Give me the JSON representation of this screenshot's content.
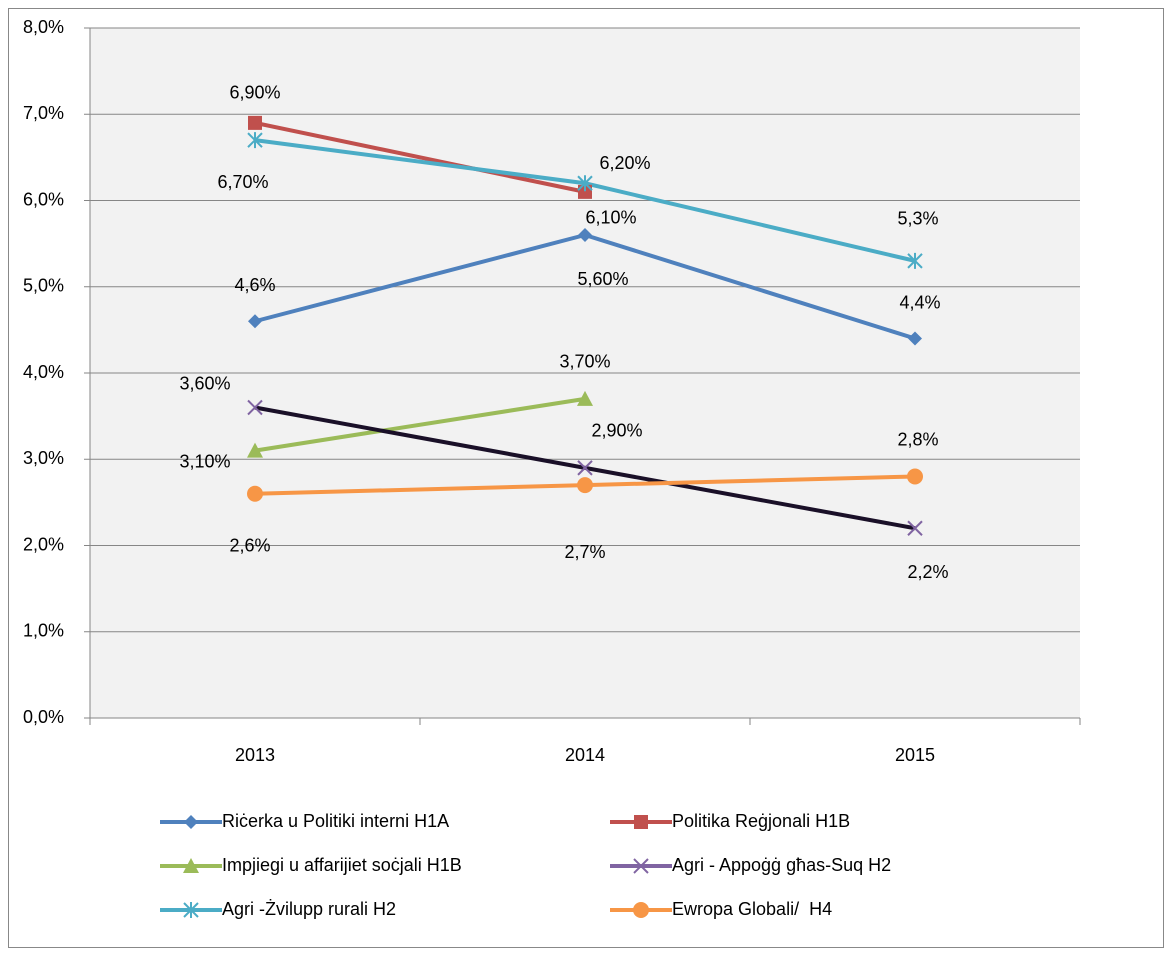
{
  "chart_data": {
    "type": "line",
    "categories": [
      "2013",
      "2014",
      "2015"
    ],
    "ylim": [
      0,
      8
    ],
    "yticks": [
      {
        "value": 0,
        "label": "0,0%"
      },
      {
        "value": 1,
        "label": "1,0%"
      },
      {
        "value": 2,
        "label": "2,0%"
      },
      {
        "value": 3,
        "label": "3,0%"
      },
      {
        "value": 4,
        "label": "4,0%"
      },
      {
        "value": 5,
        "label": "5,0%"
      },
      {
        "value": 6,
        "label": "6,0%"
      },
      {
        "value": 7,
        "label": "7,0%"
      },
      {
        "value": 8,
        "label": "8,0%"
      }
    ],
    "grid": true,
    "legend": "bottom",
    "series": [
      {
        "name": "Riċerka u Politiki interni H1A",
        "color": "#4f81bd",
        "marker": "diamond",
        "values": [
          4.6,
          5.6,
          4.4
        ],
        "value_labels": [
          "4,6%",
          "5,60%",
          "4,4%"
        ]
      },
      {
        "name": "Politika Reġjonali H1B",
        "color": "#c0504d",
        "marker": "square",
        "values": [
          6.9,
          6.1,
          null
        ],
        "value_labels": [
          "6,90%",
          "6,10%",
          null
        ]
      },
      {
        "name": "Impjiegi u affarijiet soċjali H1B",
        "color": "#9bbb59",
        "marker": "triangle",
        "values": [
          3.1,
          3.7,
          null
        ],
        "value_labels": [
          "3,10%",
          "3,70%",
          null
        ]
      },
      {
        "name": "Agri - Appoġġ għas-Suq H2",
        "color": "#8064a2",
        "marker": "x",
        "values": [
          3.6,
          2.9,
          2.2
        ],
        "value_labels": [
          "3,60%",
          "2,90%",
          "2,2%"
        ]
      },
      {
        "name": "Agri -Żvilupp rurali H2",
        "color": "#4bacc6",
        "marker": "star",
        "values": [
          6.7,
          6.2,
          5.3
        ],
        "value_labels": [
          "6,70%",
          "6,20%",
          "5,3%"
        ]
      },
      {
        "name": "Ewropa Globali/  H4",
        "color": "#f79646",
        "marker": "circle",
        "values": [
          2.6,
          2.7,
          2.8
        ],
        "value_labels": [
          "2,6%",
          "2,7%",
          "2,8%"
        ]
      }
    ]
  }
}
